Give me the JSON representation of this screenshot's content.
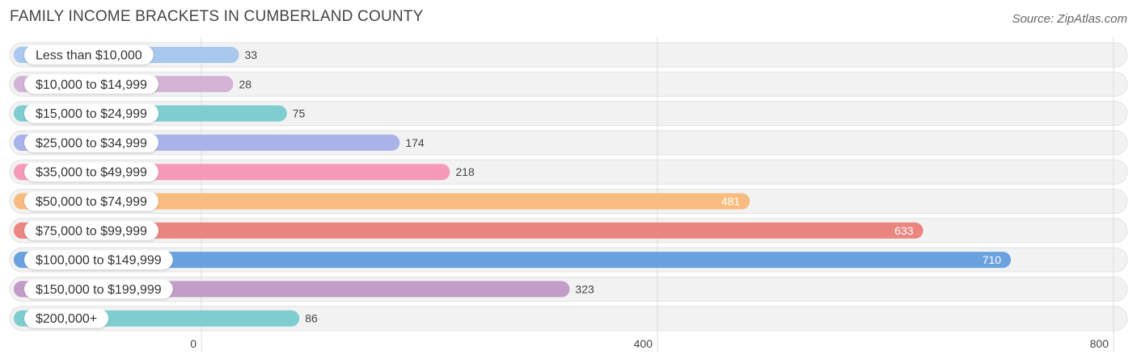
{
  "title": "FAMILY INCOME BRACKETS IN CUMBERLAND COUNTY",
  "source": "Source: ZipAtlas.com",
  "chart_data": {
    "type": "bar",
    "orientation": "horizontal",
    "categories": [
      "Less than $10,000",
      "$10,000 to $14,999",
      "$15,000 to $24,999",
      "$25,000 to $34,999",
      "$35,000 to $49,999",
      "$50,000 to $74,999",
      "$75,000 to $99,999",
      "$100,000 to $149,999",
      "$150,000 to $199,999",
      "$200,000+"
    ],
    "values": [
      33,
      28,
      75,
      174,
      218,
      481,
      633,
      710,
      323,
      86
    ],
    "value_labels": [
      "33",
      "28",
      "75",
      "174",
      "218",
      "481",
      "633",
      "710",
      "323",
      "86"
    ],
    "colors": [
      "#a9c8ee",
      "#d2b3d6",
      "#7fcdd1",
      "#aab2ea",
      "#f59ab8",
      "#f8bc80",
      "#eb8580",
      "#6aa2e0",
      "#c29dc8",
      "#7fcdd1"
    ],
    "xlim": [
      0,
      800
    ],
    "ticks": [
      0,
      400,
      800
    ],
    "tick_labels": [
      "0",
      "400",
      "800"
    ],
    "grid": true,
    "legend": "none"
  }
}
